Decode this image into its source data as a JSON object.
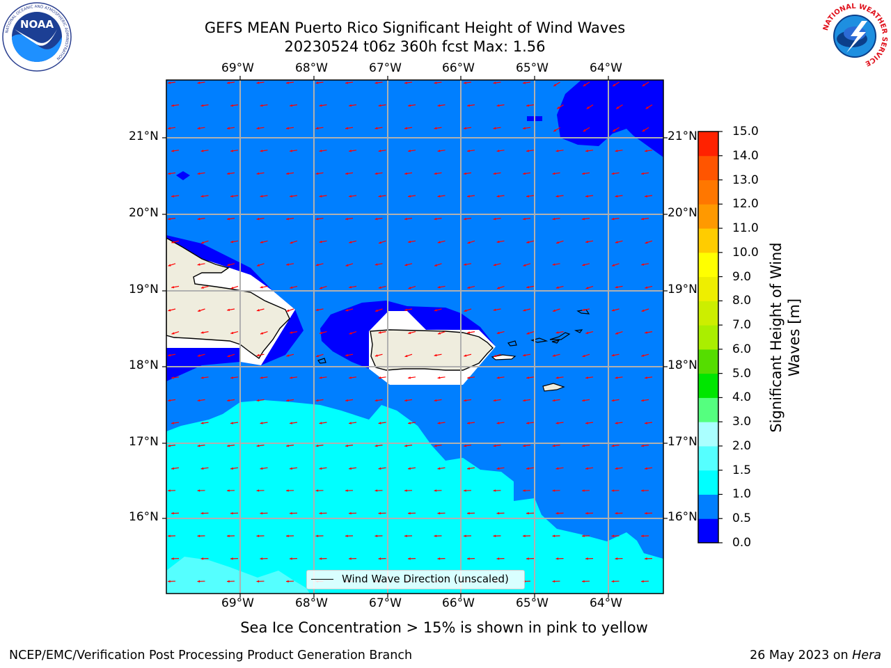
{
  "header": {
    "title_line1": "GEFS MEAN Puerto Rico Significant Height of Wind Waves",
    "title_line2": "20230524 t06z 360h fcst   Max: 1.56"
  },
  "logos": {
    "noaa": {
      "center_text": "NOAA",
      "ring_text": "NATIONAL OCEANIC AND ATMOSPHERIC ADMINISTRATION",
      "bottom_text": "U.S. DEPARTMENT OF COMMERCE"
    },
    "nws": {
      "ring_text": "NATIONAL WEATHER SERVICE"
    }
  },
  "map": {
    "lon_labels": [
      "69°W",
      "68°W",
      "67°W",
      "66°W",
      "65°W",
      "64°W"
    ],
    "lat_labels": [
      "21°N",
      "20°N",
      "19°N",
      "18°N",
      "17°N",
      "16°N"
    ],
    "legend_text": "Wind Wave Direction (unscaled)",
    "arrow_color": "#ff0000",
    "land_color": "#efedde"
  },
  "colorbar": {
    "title": "Significant Height of Wind Waves [m]",
    "labels": [
      "0.0",
      "0.5",
      "1.0",
      "1.5",
      "2.0",
      "3.0",
      "4.0",
      "5.0",
      "6.0",
      "7.0",
      "8.0",
      "9.0",
      "10.0",
      "11.0",
      "12.0",
      "13.0",
      "14.0",
      "15.0"
    ],
    "colors": [
      "#0000ff",
      "#007fff",
      "#00ffff",
      "#55ffff",
      "#aaffff",
      "#55ff7f",
      "#00e600",
      "#55dd00",
      "#aaee00",
      "#ccee00",
      "#eeee00",
      "#ffff00",
      "#ffcc00",
      "#ff9900",
      "#ff7700",
      "#ff5500",
      "#ff2200"
    ]
  },
  "caption": "Sea Ice Concentration > 15% is shown in pink to yellow",
  "footer": {
    "left": "NCEP/EMC/Verification Post Processing Product Generation Branch",
    "right_prefix": "26 May 2023 on ",
    "right_machine": "Hera"
  }
}
